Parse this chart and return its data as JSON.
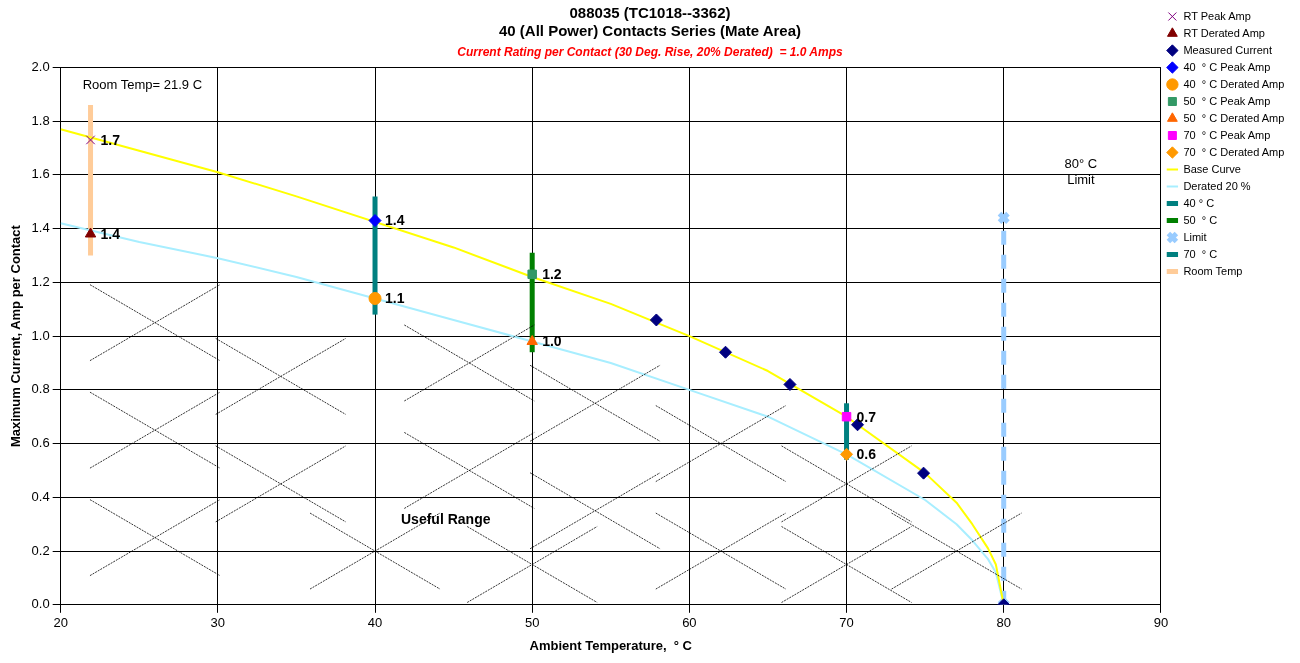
{
  "chart_data": {
    "type": "scatter",
    "title": "088035 (TC1018--3362)\n40 (All Power) Contacts Series (Mate Area)",
    "subtitle": "Current Rating per Contact (30 Deg. Rise, 20% Derated)  = 1.0 Amps",
    "xlabel": "Ambient Temperature,  ° C",
    "ylabel": "Maximum Current, Amp per Contact",
    "xlim": [
      20,
      90
    ],
    "xticks": [
      20,
      30,
      40,
      50,
      60,
      70,
      80,
      90
    ],
    "ylim": [
      0,
      2
    ],
    "yticks": [
      {
        "value": 0,
        "label": "0.0"
      },
      0.2,
      0.4,
      0.6,
      0.8,
      {
        "value": 1,
        "label": "1.0"
      },
      1.2,
      1.4,
      1.6,
      1.8,
      {
        "value": 2,
        "label": "2.0"
      }
    ],
    "grid": true,
    "legend": "top right",
    "annotations": [
      "Room Temp= 21.9 C",
      "80° C\nLimit",
      "Useful Range"
    ],
    "series": [
      {
        "name": "Base Curve",
        "type": "line",
        "color": "#ffff00",
        "marker": "none",
        "x": [
          20,
          25,
          30,
          35,
          45,
          50,
          55,
          60,
          65,
          70,
          75,
          77,
          78,
          79,
          79.5,
          80
        ],
        "values": [
          1.77,
          1.69,
          1.61,
          1.52,
          1.33,
          1.22,
          1.12,
          1.0,
          0.87,
          0.7,
          0.49,
          0.38,
          0.3,
          0.21,
          0.15,
          0
        ]
      },
      {
        "name": "Derated 20 %",
        "type": "line",
        "color": "#a8eeff",
        "marker": "none",
        "x": [
          20,
          25,
          30,
          35,
          45,
          50,
          55,
          60,
          65,
          70,
          75,
          77,
          78,
          79,
          79.5,
          80
        ],
        "values": [
          1.42,
          1.35,
          1.29,
          1.22,
          1.06,
          0.98,
          0.9,
          0.8,
          0.7,
          0.56,
          0.39,
          0.3,
          0.24,
          0.17,
          0.12,
          0
        ]
      },
      {
        "name": "RT Peak Amp",
        "type": "scatter",
        "color": "#800080",
        "marker": "cross",
        "x": [
          21.9
        ],
        "values": [
          1.73
        ],
        "value_labels": [
          "1.7"
        ]
      },
      {
        "name": "RT Derated Amp",
        "type": "scatter",
        "color": "#800000",
        "marker": "triangle",
        "x": [
          21.9
        ],
        "values": [
          1.38
        ],
        "value_labels": [
          "1.4"
        ]
      },
      {
        "name": "Measured Current",
        "type": "scatter",
        "color": "#000080",
        "marker": "diamond",
        "x": [
          57.9,
          62.3,
          66.4,
          70.7,
          74.9,
          80
        ],
        "values": [
          1.06,
          0.94,
          0.82,
          0.67,
          0.49,
          0
        ]
      },
      {
        "name": "40 ° C",
        "type": "line",
        "color": "#008080",
        "marker": "none",
        "x": [
          40,
          40
        ],
        "values": [
          1.08,
          1.52
        ]
      },
      {
        "name": "40  ° C Peak Amp",
        "type": "scatter",
        "color": "#0000ff",
        "marker": "diamond",
        "x": [
          40
        ],
        "values": [
          1.43
        ],
        "value_labels": [
          "1.4"
        ]
      },
      {
        "name": "40  ° C Derated Amp",
        "type": "scatter",
        "color": "#ff9900",
        "marker": "circle",
        "x": [
          40
        ],
        "values": [
          1.14
        ],
        "value_labels": [
          "1.1"
        ]
      },
      {
        "name": "50  ° C",
        "type": "line",
        "color": "#008000",
        "marker": "none",
        "x": [
          50,
          50
        ],
        "values": [
          0.94,
          1.31
        ]
      },
      {
        "name": "50  ° C Peak Amp",
        "type": "scatter",
        "color": "#339966",
        "marker": "square",
        "x": [
          50
        ],
        "values": [
          1.23
        ],
        "value_labels": [
          "1.2"
        ]
      },
      {
        "name": "50  ° C Derated Amp",
        "type": "scatter",
        "color": "#ff6600",
        "marker": "triangle",
        "x": [
          50
        ],
        "values": [
          0.98
        ],
        "value_labels": [
          "1.0"
        ]
      },
      {
        "name": "Limit",
        "type": "line",
        "color": "#99ccff",
        "marker": "cross",
        "line_style": "dashed",
        "x": [
          80,
          80
        ],
        "values": [
          0,
          1.44
        ]
      },
      {
        "name": "70  ° C Peak Amp",
        "type": "scatter",
        "color": "#ff00ff",
        "marker": "square",
        "x": [
          70
        ],
        "values": [
          0.7
        ],
        "value_labels": [
          "0.7"
        ]
      },
      {
        "name": "70  ° C Derated Amp",
        "type": "scatter",
        "color": "#ff9900",
        "marker": "diamond",
        "x": [
          70
        ],
        "values": [
          0.56
        ],
        "value_labels": [
          "0.6"
        ]
      },
      {
        "name": "70  ° C",
        "type": "line",
        "color": "#008080",
        "marker": "none",
        "x": [
          70,
          70
        ],
        "values": [
          0.54,
          0.75
        ]
      },
      {
        "name": "Room Temp",
        "type": "line",
        "color": "#ffcc99",
        "marker": "none",
        "x": [
          21.9,
          21.9
        ],
        "values": [
          1.3,
          1.86
        ]
      }
    ]
  }
}
